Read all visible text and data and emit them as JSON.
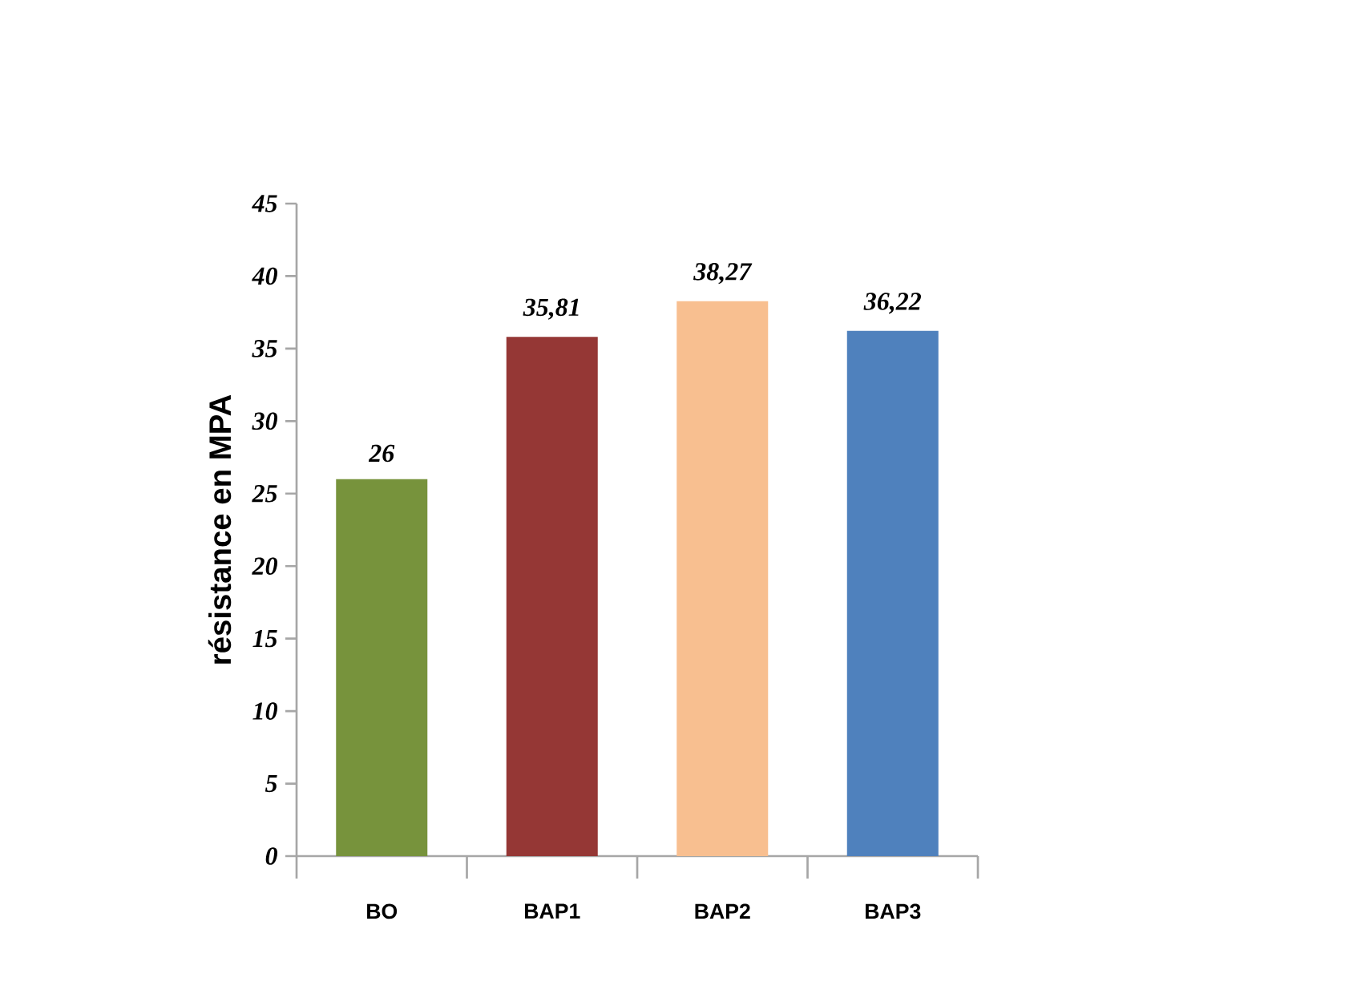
{
  "chart_data": {
    "type": "bar",
    "ylabel": "résistance en MPA",
    "categories": [
      "BO",
      "BAP1",
      "BAP2",
      "BAP3"
    ],
    "values": [
      26,
      35.81,
      38.27,
      36.22
    ],
    "colors": [
      "#77933c",
      "#953735",
      "#f8bf90",
      "#4f81bd"
    ],
    "value_labels": [
      "26",
      "35,81",
      "38,27",
      "36,22"
    ],
    "ylim": [
      0,
      45
    ],
    "yticks": [
      0,
      5,
      10,
      15,
      20,
      25,
      30,
      35,
      40,
      45
    ],
    "grid": false
  }
}
